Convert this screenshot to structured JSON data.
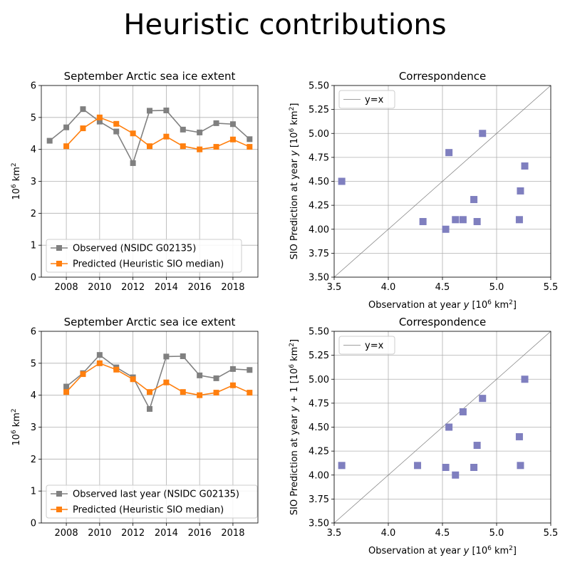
{
  "suptitle": "Heuristic contributions",
  "chart_data": [
    {
      "type": "line",
      "title": "September Arctic sea ice extent",
      "xlabel": "",
      "ylabel": "10^6 km^2",
      "xlim": [
        2006.5,
        2019.5
      ],
      "ylim": [
        0,
        6
      ],
      "xticks": [
        2008,
        2010,
        2012,
        2014,
        2016,
        2018
      ],
      "yticks": [
        0,
        1,
        2,
        3,
        4,
        5,
        6
      ],
      "grid": true,
      "legend_position": "lower-left",
      "series": [
        {
          "name": "Observed (NSIDC G02135)",
          "color": "#808080",
          "x": [
            2007,
            2008,
            2009,
            2010,
            2011,
            2012,
            2013,
            2014,
            2015,
            2016,
            2017,
            2018,
            2019
          ],
          "values": [
            4.27,
            4.69,
            5.26,
            4.87,
            4.56,
            3.57,
            5.21,
            5.22,
            4.62,
            4.53,
            4.82,
            4.79,
            4.32
          ]
        },
        {
          "name": "Predicted (Heuristic SIO median)",
          "color": "#ff7f0e",
          "x": [
            2008,
            2009,
            2010,
            2011,
            2012,
            2013,
            2014,
            2015,
            2016,
            2017,
            2018,
            2019
          ],
          "values": [
            4.1,
            4.66,
            5.0,
            4.8,
            4.5,
            4.1,
            4.4,
            4.1,
            4.0,
            4.08,
            4.31,
            4.08
          ]
        }
      ]
    },
    {
      "type": "scatter",
      "title": "Correspondence",
      "xlabel": "Observation at year y [10^6 km^2]",
      "ylabel": "SIO Prediction at year y [10^6 km^2]",
      "xlim": [
        3.5,
        5.5
      ],
      "ylim": [
        3.5,
        5.5
      ],
      "xticks": [
        3.5,
        4.0,
        4.5,
        5.0,
        5.5
      ],
      "yticks": [
        3.5,
        3.75,
        4.0,
        4.25,
        4.5,
        4.75,
        5.0,
        5.25,
        5.5
      ],
      "grid": true,
      "legend_position": "top-left",
      "reference_line": "y=x",
      "points_color": "#7f7fbf",
      "points": [
        [
          4.69,
          4.1
        ],
        [
          5.26,
          4.66
        ],
        [
          4.87,
          5.0
        ],
        [
          4.56,
          4.8
        ],
        [
          3.57,
          4.5
        ],
        [
          5.21,
          4.1
        ],
        [
          5.22,
          4.4
        ],
        [
          4.62,
          4.1
        ],
        [
          4.53,
          4.0
        ],
        [
          4.82,
          4.08
        ],
        [
          4.79,
          4.31
        ],
        [
          4.32,
          4.08
        ]
      ]
    },
    {
      "type": "line",
      "title": "September Arctic sea ice extent",
      "xlabel": "",
      "ylabel": "10^6 km^2",
      "xlim": [
        2006.5,
        2019.5
      ],
      "ylim": [
        0,
        6
      ],
      "xticks": [
        2008,
        2010,
        2012,
        2014,
        2016,
        2018
      ],
      "yticks": [
        0,
        1,
        2,
        3,
        4,
        5,
        6
      ],
      "grid": true,
      "legend_position": "lower-left",
      "series": [
        {
          "name": "Observed last year (NSIDC G02135)",
          "color": "#808080",
          "x": [
            2008,
            2009,
            2010,
            2011,
            2012,
            2013,
            2014,
            2015,
            2016,
            2017,
            2018,
            2019
          ],
          "values": [
            4.27,
            4.69,
            5.26,
            4.87,
            4.56,
            3.57,
            5.21,
            5.22,
            4.62,
            4.53,
            4.82,
            4.79
          ]
        },
        {
          "name": "Predicted (Heuristic SIO median)",
          "color": "#ff7f0e",
          "x": [
            2008,
            2009,
            2010,
            2011,
            2012,
            2013,
            2014,
            2015,
            2016,
            2017,
            2018,
            2019
          ],
          "values": [
            4.1,
            4.66,
            5.0,
            4.8,
            4.5,
            4.1,
            4.4,
            4.1,
            4.0,
            4.08,
            4.31,
            4.08
          ]
        }
      ]
    },
    {
      "type": "scatter",
      "title": "Correspondence",
      "xlabel": "Observation at year y [10^6 km^2]",
      "ylabel": "SIO Prediction at year y + 1 [10^6 km^2]",
      "xlim": [
        3.5,
        5.5
      ],
      "ylim": [
        3.5,
        5.5
      ],
      "xticks": [
        3.5,
        4.0,
        4.5,
        5.0,
        5.5
      ],
      "yticks": [
        3.5,
        3.75,
        4.0,
        4.25,
        4.5,
        4.75,
        5.0,
        5.25,
        5.5
      ],
      "grid": true,
      "legend_position": "top-left",
      "reference_line": "y=x",
      "points_color": "#7f7fbf",
      "points": [
        [
          4.27,
          4.1
        ],
        [
          4.69,
          4.66
        ],
        [
          5.26,
          5.0
        ],
        [
          4.87,
          4.8
        ],
        [
          4.56,
          4.5
        ],
        [
          3.57,
          4.1
        ],
        [
          5.21,
          4.4
        ],
        [
          5.22,
          4.1
        ],
        [
          4.62,
          4.0
        ],
        [
          4.53,
          4.08
        ],
        [
          4.82,
          4.31
        ],
        [
          4.79,
          4.08
        ]
      ]
    }
  ]
}
